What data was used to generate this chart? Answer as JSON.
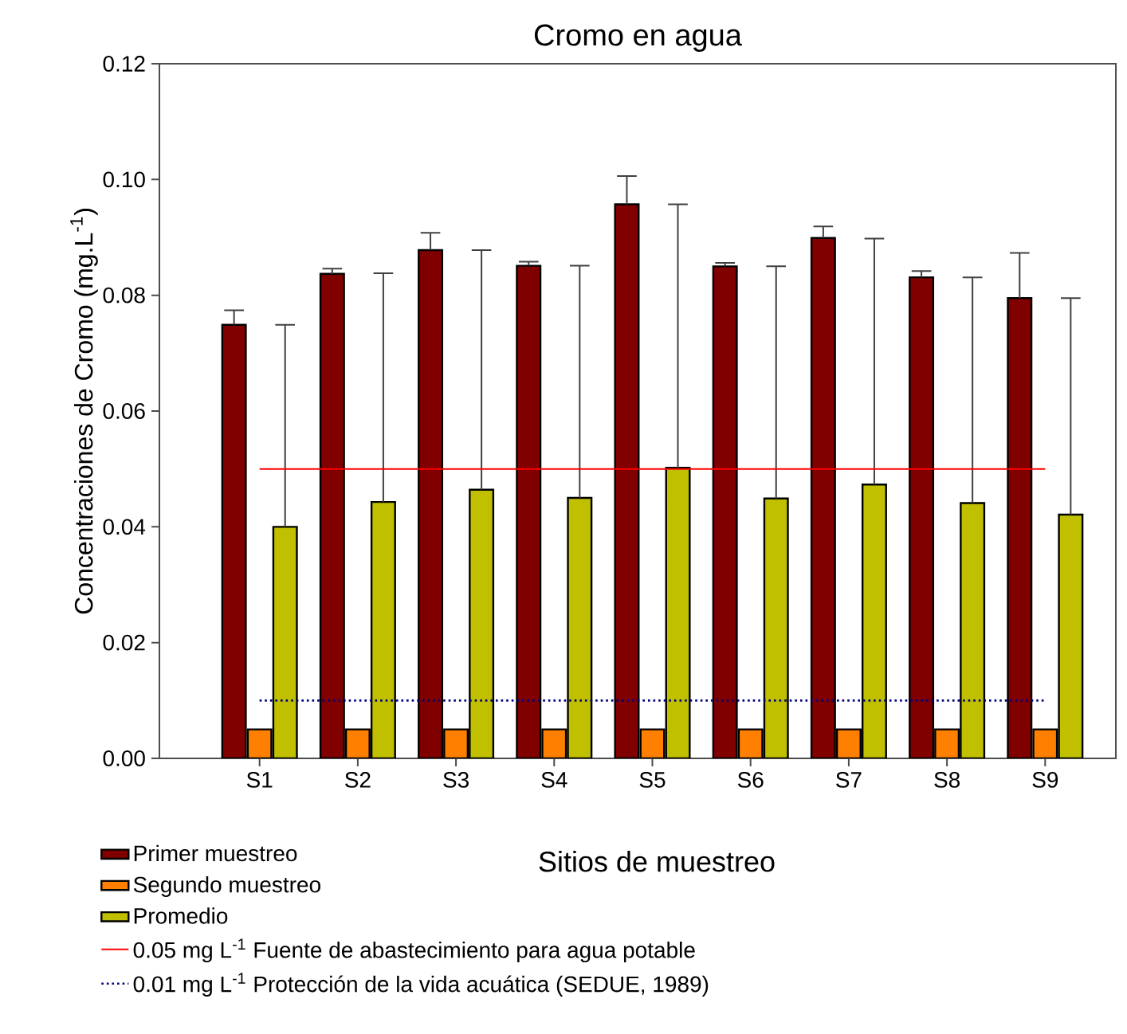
{
  "chart_data": {
    "type": "bar",
    "title": "Cromo en agua",
    "xlabel": "Sitios de muestreo",
    "ylabel": "Concentraciones de Cromo (mg.L$^{-1}$)",
    "categories": [
      "S1",
      "S2",
      "S3",
      "S4",
      "S5",
      "S6",
      "S7",
      "S8",
      "S9"
    ],
    "series": [
      {
        "name": "Primer muestreo",
        "color": "#800000",
        "values": [
          0.0749,
          0.0837,
          0.0878,
          0.0851,
          0.0957,
          0.085,
          0.0899,
          0.0831,
          0.0795
        ],
        "errors": [
          [
            0.0749,
            0.0774
          ],
          [
            0.0837,
            0.0846
          ],
          [
            0.0878,
            0.0908
          ],
          [
            0.0851,
            0.0858
          ],
          [
            0.0957,
            0.1006
          ],
          [
            0.085,
            0.0856
          ],
          [
            0.0899,
            0.0919
          ],
          [
            0.0831,
            0.0842
          ],
          [
            0.0795,
            0.0873
          ]
        ]
      },
      {
        "name": "Segundo muestreo",
        "color": "#ff8000",
        "values": [
          0.005,
          0.005,
          0.005,
          0.005,
          0.005,
          0.005,
          0.005,
          0.005,
          0.005
        ]
      },
      {
        "name": "Promedio",
        "color": "#c0c000",
        "values": [
          0.04,
          0.0443,
          0.0464,
          0.045,
          0.0502,
          0.0449,
          0.0473,
          0.0441,
          0.0421
        ],
        "errors": [
          [
            0.04,
            0.0749
          ],
          [
            0.0443,
            0.0838
          ],
          [
            0.0464,
            0.0878
          ],
          [
            0.045,
            0.0851
          ],
          [
            0.0502,
            0.0957
          ],
          [
            0.0449,
            0.085
          ],
          [
            0.0473,
            0.0898
          ],
          [
            0.0441,
            0.0831
          ],
          [
            0.0421,
            0.0795
          ]
        ]
      }
    ],
    "ref_lines": [
      {
        "axis": "y",
        "value": 0.05,
        "label": "0.05 mg L$^{-1}$ Fuente de abastecimiento para agua potable",
        "color": "#ff0000",
        "line_style": "solid"
      },
      {
        "axis": "y",
        "value": 0.01,
        "label": "0.01 mg L$^{-1}$ Protección de la vida acuática (SEDUE, 1989)",
        "color": "#000080",
        "line_style": "dotted"
      }
    ],
    "ylim": [
      0,
      0.12
    ],
    "yticks": [
      {
        "value": 0,
        "label": "0.00"
      },
      {
        "value": 0.02,
        "label": "0.02"
      },
      {
        "value": 0.04,
        "label": "0.04"
      },
      {
        "value": 0.06,
        "label": "0.06"
      },
      {
        "value": 0.08,
        "label": "0.08"
      },
      {
        "value": 0.1,
        "label": "0.10"
      },
      {
        "value": 0.12,
        "label": "0.12"
      }
    ],
    "legend": "bottom"
  }
}
